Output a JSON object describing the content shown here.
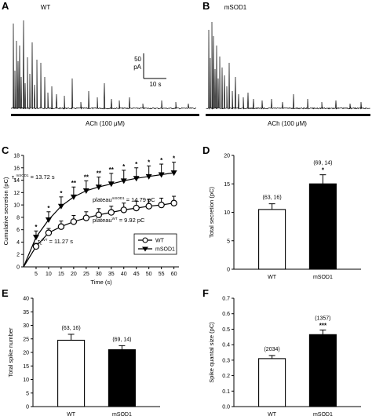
{
  "chart_data": [
    {
      "panel": "A",
      "type": "line",
      "title": "WT",
      "stimulus_label": "ACh (100 μM)",
      "scale_bar": {
        "y_value": "50",
        "y_unit": "pA",
        "x_label": "10 s"
      }
    },
    {
      "panel": "B",
      "type": "line",
      "title": "mSOD1",
      "stimulus_label": "ACh (100 μM)"
    },
    {
      "panel": "C",
      "type": "line",
      "xlabel": "Time (s)",
      "ylabel": "Cumulative secretion (pC)",
      "xlim": [
        0,
        62
      ],
      "ylim": [
        0,
        18
      ],
      "x_ticks": [
        5,
        10,
        15,
        20,
        25,
        30,
        35,
        40,
        45,
        50,
        55,
        60
      ],
      "y_ticks": [
        0,
        2,
        4,
        6,
        8,
        10,
        12,
        14,
        16,
        18
      ],
      "x": [
        5,
        10,
        15,
        20,
        25,
        30,
        35,
        40,
        45,
        50,
        55,
        60
      ],
      "series": [
        {
          "name": "WT",
          "marker": "open-circle",
          "values": [
            3.3,
            5.5,
            6.5,
            7.3,
            7.9,
            8.4,
            8.8,
            9.2,
            9.5,
            9.8,
            10.0,
            10.3
          ],
          "errors": [
            0.5,
            0.7,
            0.9,
            1.0,
            1.0,
            1.0,
            1.0,
            1.1,
            1.1,
            1.1,
            1.1,
            1.1
          ]
        },
        {
          "name": "mSOD1",
          "marker": "filled-triangle-down",
          "values": [
            4.8,
            7.6,
            9.8,
            11.3,
            12.3,
            12.9,
            13.4,
            13.9,
            14.3,
            14.6,
            14.9,
            15.2
          ],
          "errors": [
            1.0,
            1.3,
            1.5,
            1.6,
            1.6,
            1.6,
            1.7,
            1.7,
            1.7,
            1.7,
            1.7,
            1.7
          ]
        }
      ],
      "significance": [
        "*",
        "*",
        "*",
        "**",
        "**",
        "**",
        "**",
        "*",
        "*",
        "*",
        "*",
        "*"
      ],
      "annotations": {
        "tau_msod1": "τ",
        "tau_msod1_sub": "c",
        "tau_msod1_sup": "mSOD1",
        "tau_msod1_value": "= 13.72 s",
        "plateau_msod1": "plateau",
        "plateau_msod1_sup": "mSOD1",
        "plateau_msod1_value": "= 14.79 pC",
        "plateau_wt": "plateau",
        "plateau_wt_sup": "WT",
        "plateau_wt_value": "= 9.92 pC",
        "tau_wt": "τ",
        "tau_wt_sub": "c",
        "tau_wt_sup": "WT",
        "tau_wt_value": "= 11.27 s"
      },
      "legend": "bottom-right"
    },
    {
      "panel": "D",
      "type": "bar",
      "categories": [
        "WT",
        "mSOD1"
      ],
      "values": [
        10.5,
        15.0
      ],
      "errors": [
        1.0,
        1.6
      ],
      "ylabel": "Total secretion (pC)",
      "ylim": [
        0,
        20
      ],
      "y_ticks": [
        0,
        5,
        10,
        15,
        20
      ],
      "n_labels": [
        "(63, 16)",
        "(69, 14)"
      ],
      "significance": [
        "",
        "*"
      ]
    },
    {
      "panel": "E",
      "type": "bar",
      "categories": [
        "WT",
        "mSOD1"
      ],
      "values": [
        24.5,
        21.0
      ],
      "errors": [
        2.2,
        1.5
      ],
      "ylabel": "Total spike number",
      "ylim": [
        0,
        40
      ],
      "y_ticks": [
        0,
        5,
        10,
        15,
        20,
        25,
        30,
        35,
        40
      ],
      "n_labels": [
        "(63, 16)",
        "(69, 14)"
      ],
      "significance": [
        "",
        ""
      ]
    },
    {
      "panel": "F",
      "type": "bar",
      "categories": [
        "WT",
        "mSOD1"
      ],
      "values": [
        0.31,
        0.465
      ],
      "errors": [
        0.02,
        0.03
      ],
      "ylabel": "Spike quantal size (pC)",
      "ylim": [
        0,
        0.7
      ],
      "y_ticks": [
        0.0,
        0.1,
        0.2,
        0.3,
        0.4,
        0.5,
        0.6,
        0.7
      ],
      "y_tick_labels": [
        "0.0",
        "0.1",
        "0.2",
        "0.3",
        "0.4",
        "0.5",
        "0.6",
        "0.7"
      ],
      "n_labels": [
        "(2034)",
        "(1357)"
      ],
      "significance": [
        "",
        "***"
      ]
    }
  ],
  "panel_letters": [
    "A",
    "B",
    "C",
    "D",
    "E",
    "F"
  ]
}
